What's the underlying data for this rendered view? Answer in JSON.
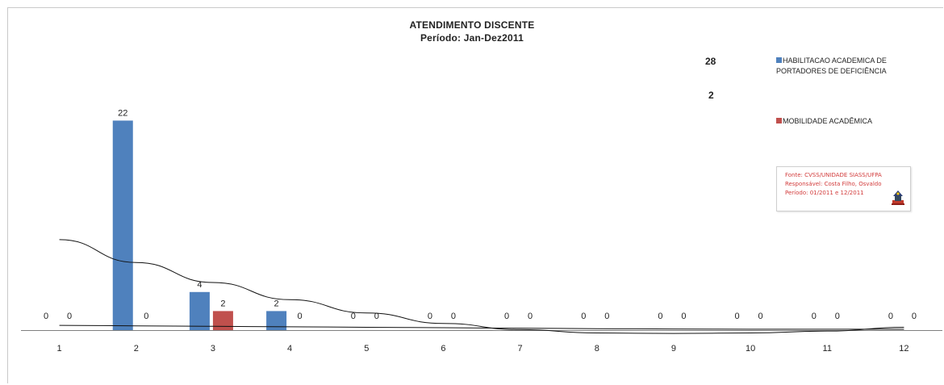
{
  "chart_data": {
    "type": "bar",
    "title": "ATENDIMENTO DISCENTE",
    "subtitle": "Período: Jan-Dez2011",
    "categories": [
      "1",
      "2",
      "3",
      "4",
      "5",
      "6",
      "7",
      "8",
      "9",
      "10",
      "11",
      "12"
    ],
    "series": [
      {
        "name": "HABILITACAO ACADEMICA DE PORTADORES DE DEFICIÊNCIA",
        "color": "#4f81bd",
        "total": "28",
        "values": [
          0,
          22,
          4,
          2,
          0,
          0,
          0,
          0,
          0,
          0,
          0,
          0
        ]
      },
      {
        "name": "MOBILIDADE ACADÊMICA",
        "color": "#c0504d",
        "total": "2",
        "values": [
          0,
          0,
          2,
          0,
          0,
          0,
          0,
          0,
          0,
          0,
          0,
          0
        ]
      }
    ],
    "trendlines": [
      {
        "series": "HABILITACAO ACADEMICA DE PORTADORES DE DEFICIÊNCIA",
        "kind": "polynomial",
        "values": [
          9.5,
          7.1,
          5.0,
          3.2,
          1.8,
          0.7,
          0.05,
          -0.3,
          -0.35,
          -0.3,
          -0.1,
          0.3
        ]
      },
      {
        "series": "MOBILIDADE ACADÊMICA",
        "kind": "linear",
        "values": [
          0.5,
          0.45,
          0.4,
          0.35,
          0.3,
          0.25,
          0.2,
          0.15,
          0.12,
          0.1,
          0.1,
          0.1
        ]
      }
    ],
    "ylim": [
      -1.5,
      22.5
    ],
    "grid": false,
    "legend_position": "top-right",
    "source": {
      "lines": [
        "Fonte: CVSS/UNIDADE SIASS/UFPA",
        "Responsável: Costa Filho, Osvaldo",
        "Período: 01/2011 e 12/2011"
      ]
    }
  }
}
